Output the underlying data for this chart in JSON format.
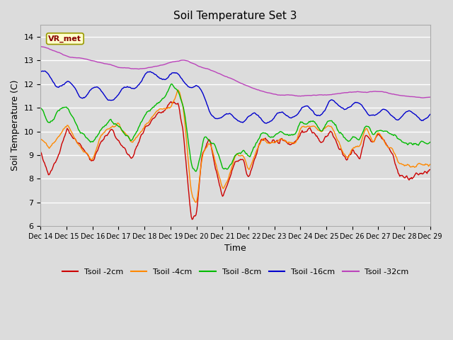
{
  "title": "Soil Temperature Set 3",
  "xlabel": "Time",
  "ylabel": "Soil Temperature (C)",
  "ylim": [
    6.0,
    14.5
  ],
  "yticks": [
    6.0,
    7.0,
    8.0,
    9.0,
    10.0,
    11.0,
    12.0,
    13.0,
    14.0
  ],
  "background_color": "#dcdcdc",
  "plot_bg_color": "#dcdcdc",
  "grid_color": "#ffffff",
  "legend_label": "VR_met",
  "series_colors": {
    "Tsoil -2cm": "#cc0000",
    "Tsoil -4cm": "#ff8800",
    "Tsoil -8cm": "#00bb00",
    "Tsoil -16cm": "#0000cc",
    "Tsoil -32cm": "#bb44bb"
  },
  "x_tick_labels": [
    "Dec 14",
    "Dec 15",
    "Dec 16",
    "Dec 17",
    "Dec 18",
    "Dec 19",
    "Dec 20",
    "Dec 21",
    "Dec 22",
    "Dec 23",
    "Dec 24",
    "Dec 25",
    "Dec 26",
    "Dec 27",
    "Dec 28",
    "Dec 29"
  ],
  "num_points": 500,
  "day_start": 14,
  "day_end": 29
}
